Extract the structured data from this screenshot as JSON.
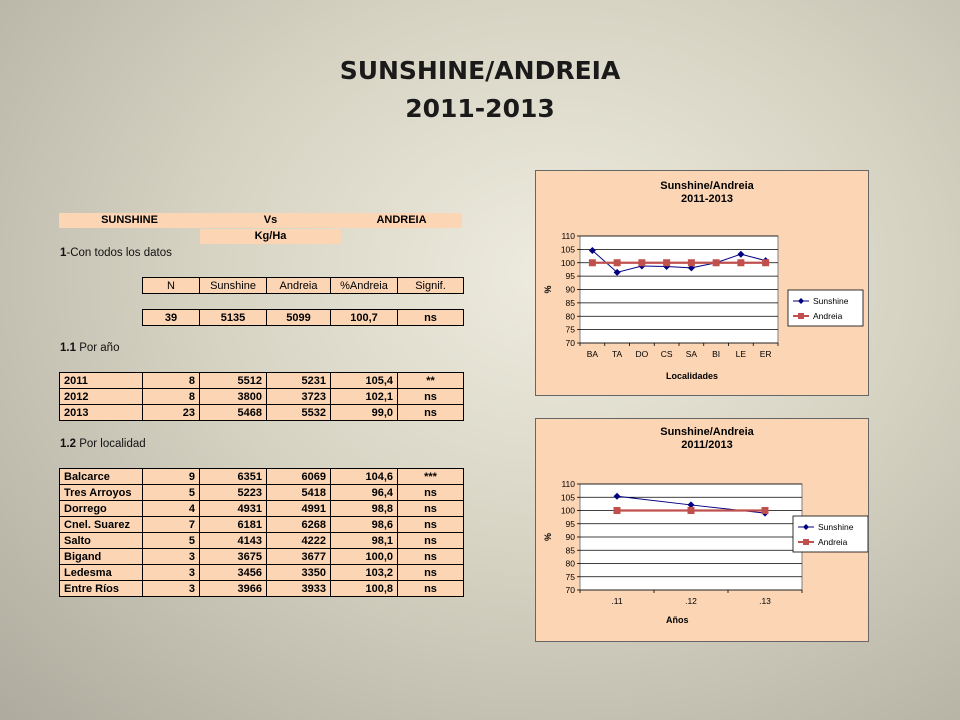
{
  "page": {
    "title": "SUNSHINE/ANDREIA",
    "subtitle": "2011-2013"
  },
  "header": {
    "col1": "SUNSHINE",
    "col2": "Vs",
    "col3": "ANDREIA",
    "unit": "Kg/Ha"
  },
  "sections": {
    "all_num": "1",
    "all_text": "-Con todos los datos",
    "year_num": "1.1",
    "year_text": " Por año",
    "loc_num": "1.2",
    "loc_text": " Por localidad"
  },
  "summary": {
    "headers": [
      "N",
      "Sunshine",
      "Andreia",
      "%Andreia",
      "Signif."
    ],
    "row": [
      "39",
      "5135",
      "5099",
      "100,7",
      "ns"
    ]
  },
  "by_year": [
    [
      "2011",
      "8",
      "5512",
      "5231",
      "105,4",
      "**"
    ],
    [
      "2012",
      "8",
      "3800",
      "3723",
      "102,1",
      "ns"
    ],
    [
      "2013",
      "23",
      "5468",
      "5532",
      "99,0",
      "ns"
    ]
  ],
  "by_location": [
    [
      "Balcarce",
      "9",
      "6351",
      "6069",
      "104,6",
      "***"
    ],
    [
      "Tres Arroyos",
      "5",
      "5223",
      "5418",
      "96,4",
      "ns"
    ],
    [
      "Dorrego",
      "4",
      "4931",
      "4991",
      "98,8",
      "ns"
    ],
    [
      "Cnel. Suarez",
      "7",
      "6181",
      "6268",
      "98,6",
      "ns"
    ],
    [
      "Salto",
      "5",
      "4143",
      "4222",
      "98,1",
      "ns"
    ],
    [
      "Bigand",
      "3",
      "3675",
      "3677",
      "100,0",
      "ns"
    ],
    [
      "Ledesma",
      "3",
      "3456",
      "3350",
      "103,2",
      "ns"
    ],
    [
      "Entre Ríos",
      "3",
      "3966",
      "3933",
      "100,8",
      "ns"
    ]
  ],
  "colors": {
    "sunshine": "#000080",
    "andreia": "#c0504d",
    "panel": "#fcd5b4"
  },
  "chart_data": [
    {
      "type": "line",
      "title": "Sunshine/Andreia",
      "subtitle": "2011-2013",
      "xlabel": "Localidades",
      "ylabel": "%",
      "categories": [
        "BA",
        "TA",
        "DO",
        "CS",
        "SA",
        "BI",
        "LE",
        "ER"
      ],
      "ylim": [
        70,
        110
      ],
      "yticks": [
        "70",
        "75",
        "80",
        "85",
        "90",
        "95",
        "100",
        "105",
        "110"
      ],
      "grid": true,
      "legend": "right",
      "series": [
        {
          "name": "Sunshine",
          "values": [
            104.6,
            96.4,
            98.8,
            98.6,
            98.1,
            100.0,
            103.2,
            100.8
          ],
          "marker": "diamond",
          "color": "#000080"
        },
        {
          "name": "Andreia",
          "values": [
            100,
            100,
            100,
            100,
            100,
            100,
            100,
            100
          ],
          "marker": "square",
          "color": "#c0504d"
        }
      ]
    },
    {
      "type": "line",
      "title": "Sunshine/Andreia",
      "subtitle": "2011/2013",
      "xlabel": "Años",
      "ylabel": "%",
      "categories": [
        ".11",
        ".12",
        ".13"
      ],
      "ylim": [
        70,
        110
      ],
      "yticks": [
        "70",
        "75",
        "80",
        "85",
        "90",
        "95",
        "100",
        "105",
        "110"
      ],
      "grid": true,
      "legend": "right",
      "series": [
        {
          "name": "Sunshine",
          "values": [
            105.4,
            102.1,
            99.0
          ],
          "marker": "diamond",
          "color": "#000080"
        },
        {
          "name": "Andreia",
          "values": [
            100,
            100,
            100
          ],
          "marker": "square",
          "color": "#c0504d"
        }
      ]
    }
  ]
}
